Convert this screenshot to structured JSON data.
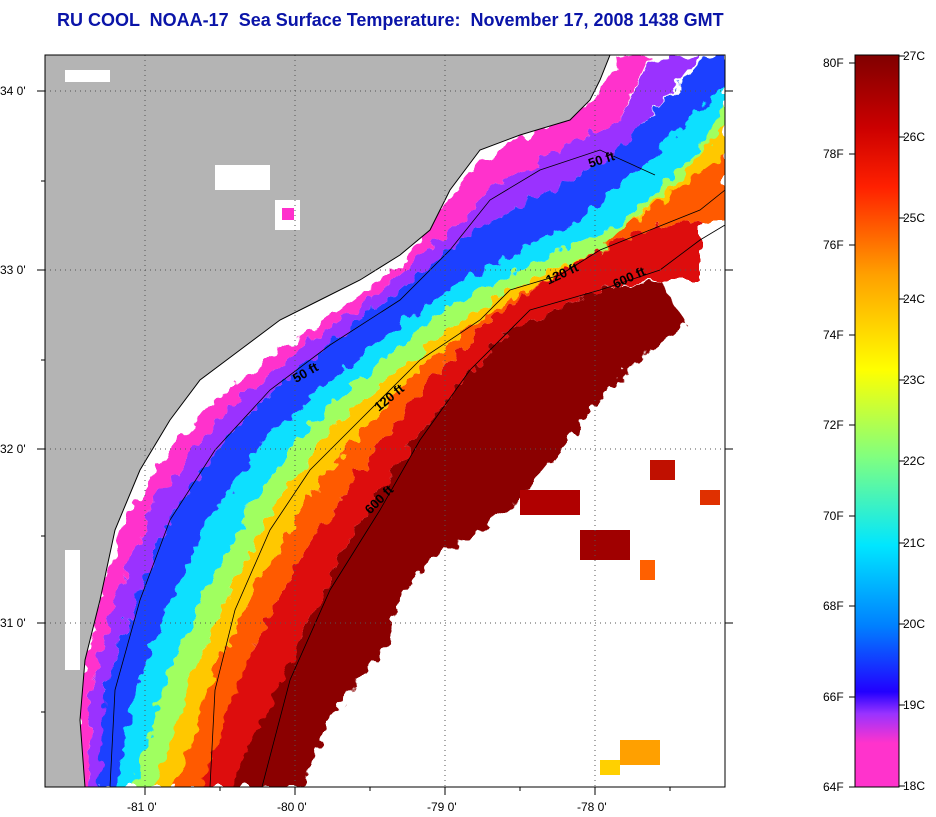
{
  "title": "RU COOL  NOAA-17  Sea Surface Temperature:  November 17, 2008 1438 GMT",
  "map": {
    "lat_labels": [
      "34 0'",
      "33 0'",
      "32 0'",
      "31 0'"
    ],
    "lon_labels": [
      "-81 0'",
      "-80 0'",
      "-79 0'",
      "-78 0'"
    ],
    "contour_labels": [
      "50 ft",
      "120 ft",
      "600 ft",
      "50 ft",
      "120 ft",
      "600 ft"
    ],
    "colors": {
      "land": "#b4b4b4",
      "cloud": "#ffffff",
      "outline": "#000000"
    }
  },
  "colorbar": {
    "fahrenheit_labels": [
      "80F",
      "78F",
      "76F",
      "74F",
      "72F",
      "70F",
      "68F",
      "66F",
      "64F"
    ],
    "celsius_labels": [
      "27C",
      "26C",
      "25C",
      "24C",
      "23C",
      "22C",
      "21C",
      "20C",
      "19C",
      "18C"
    ],
    "range_f": [
      64,
      80
    ],
    "range_c": [
      18,
      27
    ],
    "stops": [
      "#ff33cc",
      "#9933ff",
      "#2200ff",
      "#0080ff",
      "#00e6ff",
      "#80ff80",
      "#ffff00",
      "#ffa000",
      "#ff2000",
      "#cc0000",
      "#800000"
    ]
  }
}
